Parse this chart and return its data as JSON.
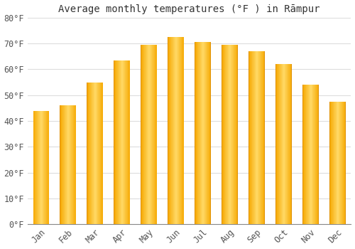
{
  "months": [
    "Jan",
    "Feb",
    "Mar",
    "Apr",
    "May",
    "Jun",
    "Jul",
    "Aug",
    "Sep",
    "Oct",
    "Nov",
    "Dec"
  ],
  "values": [
    44,
    46,
    55,
    63.5,
    69.5,
    72.5,
    70.5,
    69.5,
    67,
    62,
    54,
    47.5
  ],
  "title": "Average monthly temperatures (°F ) in Rāmpur",
  "ylim": [
    0,
    80
  ],
  "ytick_step": 10,
  "bar_color_center": "#FFCC55",
  "bar_color_edge": "#F5A800",
  "background_color": "#FFFFFF",
  "plot_bg_color": "#FFFFFF",
  "grid_color": "#DDDDDD",
  "title_fontsize": 10,
  "tick_fontsize": 8.5,
  "bar_width": 0.6
}
